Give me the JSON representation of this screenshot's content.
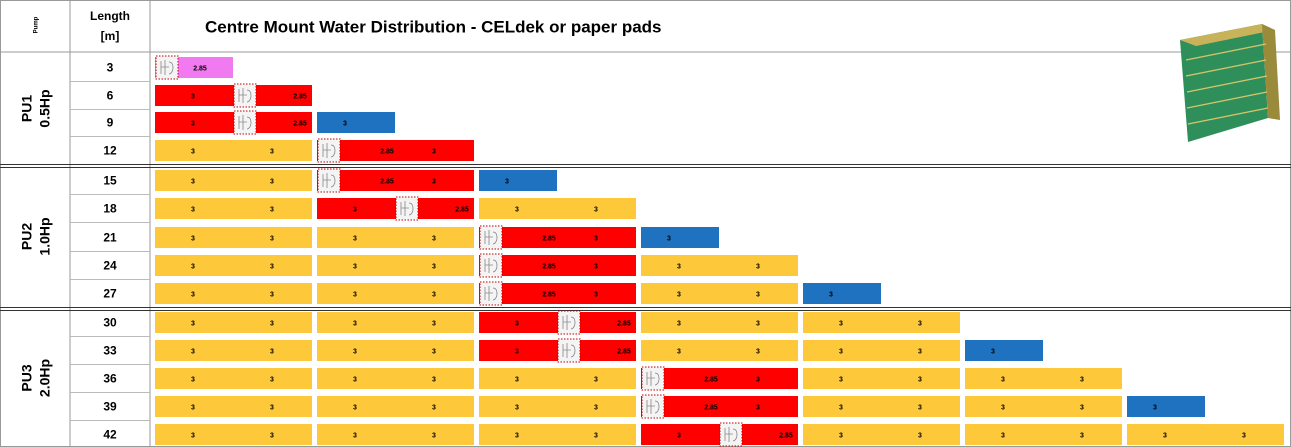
{
  "header": {
    "pump": "Pump",
    "length": [
      "Length",
      "[m]"
    ],
    "title": "Centre Mount Water Distribution - CELdek or paper pads"
  },
  "groups": [
    {
      "name": "PU1",
      "power": "0.5Hp",
      "rows": [
        {
          "length": "3",
          "segments": [
            {
              "color": "#f27af0",
              "labels": [
                null,
                "2.85"
              ]
            }
          ]
        },
        {
          "length": "6",
          "segments": [
            {
              "color": "#ff0000",
              "labels": [
                "3",
                null,
                "2.85"
              ]
            }
          ]
        },
        {
          "length": "9",
          "segments": [
            {
              "color": "#ff0000",
              "labels": [
                "3",
                null,
                "2.85"
              ]
            },
            {
              "color": "#1f72c0",
              "labels": [
                "3"
              ]
            }
          ]
        },
        {
          "length": "12",
          "segments": [
            {
              "color": "#fdc83a",
              "labels": [
                "3",
                "3"
              ]
            },
            {
              "color": "#ff0000",
              "labels": [
                null,
                "2.85",
                "3"
              ]
            }
          ]
        }
      ]
    },
    {
      "name": "PU2",
      "power": "1.0Hp",
      "rows": [
        {
          "length": "15",
          "segments": [
            {
              "color": "#fdc83a",
              "labels": [
                "3",
                "3"
              ]
            },
            {
              "color": "#ff0000",
              "labels": [
                null,
                "2.85",
                "3"
              ]
            },
            {
              "color": "#1f72c0",
              "labels": [
                "3"
              ]
            }
          ]
        },
        {
          "length": "18",
          "segments": [
            {
              "color": "#fdc83a",
              "labels": [
                "3",
                "3"
              ]
            },
            {
              "color": "#ff0000",
              "labels": [
                "3",
                null,
                "2.85"
              ]
            },
            {
              "color": "#fdc83a",
              "labels": [
                "3",
                "3"
              ]
            }
          ]
        },
        {
          "length": "21",
          "segments": [
            {
              "color": "#fdc83a",
              "labels": [
                "3",
                "3"
              ]
            },
            {
              "color": "#fdc83a",
              "labels": [
                "3",
                "3"
              ]
            },
            {
              "color": "#ff0000",
              "labels": [
                null,
                "2.85",
                "3"
              ]
            },
            {
              "color": "#1f72c0",
              "labels": [
                "3"
              ]
            }
          ]
        },
        {
          "length": "24",
          "segments": [
            {
              "color": "#fdc83a",
              "labels": [
                "3",
                "3"
              ]
            },
            {
              "color": "#fdc83a",
              "labels": [
                "3",
                "3"
              ]
            },
            {
              "color": "#ff0000",
              "labels": [
                null,
                "2.85",
                "3"
              ]
            },
            {
              "color": "#fdc83a",
              "labels": [
                "3",
                "3"
              ]
            }
          ]
        },
        {
          "length": "27",
          "segments": [
            {
              "color": "#fdc83a",
              "labels": [
                "3",
                "3"
              ]
            },
            {
              "color": "#fdc83a",
              "labels": [
                "3",
                "3"
              ]
            },
            {
              "color": "#ff0000",
              "labels": [
                null,
                "2.85",
                "3"
              ]
            },
            {
              "color": "#fdc83a",
              "labels": [
                "3",
                "3"
              ]
            },
            {
              "color": "#1f72c0",
              "labels": [
                "3"
              ]
            }
          ]
        }
      ]
    },
    {
      "name": "PU3",
      "power": "2.0Hp",
      "rows": [
        {
          "length": "30",
          "segments": [
            {
              "color": "#fdc83a",
              "labels": [
                "3",
                "3"
              ]
            },
            {
              "color": "#fdc83a",
              "labels": [
                "3",
                "3"
              ]
            },
            {
              "color": "#ff0000",
              "labels": [
                "3",
                null,
                "2.85"
              ]
            },
            {
              "color": "#fdc83a",
              "labels": [
                "3",
                "3"
              ]
            },
            {
              "color": "#fdc83a",
              "labels": [
                "3",
                "3"
              ]
            }
          ]
        },
        {
          "length": "33",
          "segments": [
            {
              "color": "#fdc83a",
              "labels": [
                "3",
                "3"
              ]
            },
            {
              "color": "#fdc83a",
              "labels": [
                "3",
                "3"
              ]
            },
            {
              "color": "#ff0000",
              "labels": [
                "3",
                null,
                "2.85"
              ]
            },
            {
              "color": "#fdc83a",
              "labels": [
                "3",
                "3"
              ]
            },
            {
              "color": "#fdc83a",
              "labels": [
                "3",
                "3"
              ]
            },
            {
              "color": "#1f72c0",
              "labels": [
                "3"
              ]
            }
          ]
        },
        {
          "length": "36",
          "segments": [
            {
              "color": "#fdc83a",
              "labels": [
                "3",
                "3"
              ]
            },
            {
              "color": "#fdc83a",
              "labels": [
                "3",
                "3"
              ]
            },
            {
              "color": "#fdc83a",
              "labels": [
                "3",
                "3"
              ]
            },
            {
              "color": "#ff0000",
              "labels": [
                null,
                "2.85",
                "3"
              ]
            },
            {
              "color": "#fdc83a",
              "labels": [
                "3",
                "3"
              ]
            },
            {
              "color": "#fdc83a",
              "labels": [
                "3",
                "3"
              ]
            }
          ]
        },
        {
          "length": "39",
          "segments": [
            {
              "color": "#fdc83a",
              "labels": [
                "3",
                "3"
              ]
            },
            {
              "color": "#fdc83a",
              "labels": [
                "3",
                "3"
              ]
            },
            {
              "color": "#fdc83a",
              "labels": [
                "3",
                "3"
              ]
            },
            {
              "color": "#ff0000",
              "labels": [
                null,
                "2.85",
                "3"
              ]
            },
            {
              "color": "#fdc83a",
              "labels": [
                "3",
                "3"
              ]
            },
            {
              "color": "#fdc83a",
              "labels": [
                "3",
                "3"
              ]
            },
            {
              "color": "#1f72c0",
              "labels": [
                "3"
              ]
            }
          ]
        },
        {
          "length": "42",
          "segments": [
            {
              "color": "#fdc83a",
              "labels": [
                "3",
                "3"
              ]
            },
            {
              "color": "#fdc83a",
              "labels": [
                "3",
                "3"
              ]
            },
            {
              "color": "#fdc83a",
              "labels": [
                "3",
                "3"
              ]
            },
            {
              "color": "#ff0000",
              "labels": [
                "3",
                null,
                "2.85"
              ]
            },
            {
              "color": "#fdc83a",
              "labels": [
                "3",
                "3"
              ]
            },
            {
              "color": "#fdc83a",
              "labels": [
                "3",
                "3"
              ]
            },
            {
              "color": "#fdc83a",
              "labels": [
                "3",
                "3"
              ]
            }
          ]
        }
      ]
    }
  ]
}
